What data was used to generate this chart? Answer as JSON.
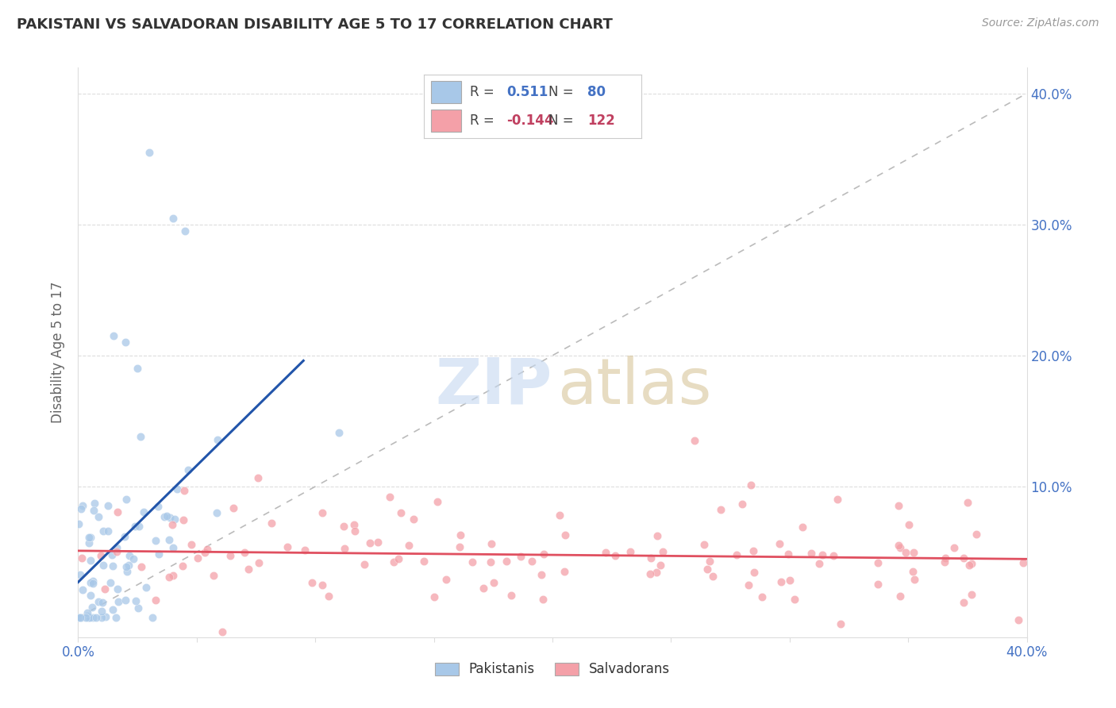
{
  "title": "PAKISTANI VS SALVADORAN DISABILITY AGE 5 TO 17 CORRELATION CHART",
  "source": "Source: ZipAtlas.com",
  "ylabel": "Disability Age 5 to 17",
  "xlim": [
    0.0,
    0.4
  ],
  "ylim": [
    -0.015,
    0.42
  ],
  "pakistani_color": "#a8c8e8",
  "salvadoran_color": "#f4a0a8",
  "pakistani_line_color": "#2255aa",
  "salvadoran_line_color": "#e05060",
  "ref_line_color": "#bbbbbb",
  "legend_blue_val": "0.511",
  "legend_blue_n": "80",
  "legend_pink_val": "-0.144",
  "legend_pink_n": "122",
  "tick_color": "#4472c4",
  "grid_color": "#dddddd",
  "title_color": "#333333",
  "source_color": "#999999"
}
